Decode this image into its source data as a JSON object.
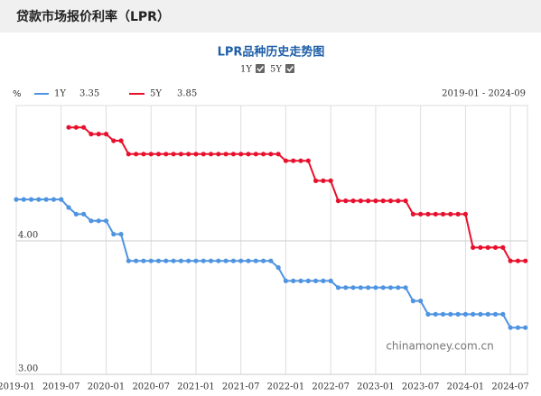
{
  "header": {
    "title": "贷款市场报价利率（LPR）"
  },
  "chart_data": {
    "type": "line",
    "title": "LPR品种历史走势图",
    "y_unit": "%",
    "range_label": "2019-01 - 2024-09",
    "watermark": "chinamoney.com.cn",
    "x": [
      "2019-01",
      "2019-02",
      "2019-03",
      "2019-04",
      "2019-05",
      "2019-06",
      "2019-07",
      "2019-08",
      "2019-09",
      "2019-10",
      "2019-11",
      "2019-12",
      "2020-01",
      "2020-02",
      "2020-03",
      "2020-04",
      "2020-05",
      "2020-06",
      "2020-07",
      "2020-08",
      "2020-09",
      "2020-10",
      "2020-11",
      "2020-12",
      "2021-01",
      "2021-02",
      "2021-03",
      "2021-04",
      "2021-05",
      "2021-06",
      "2021-07",
      "2021-08",
      "2021-09",
      "2021-10",
      "2021-11",
      "2021-12",
      "2022-01",
      "2022-02",
      "2022-03",
      "2022-04",
      "2022-05",
      "2022-06",
      "2022-07",
      "2022-08",
      "2022-09",
      "2022-10",
      "2022-11",
      "2022-12",
      "2023-01",
      "2023-02",
      "2023-03",
      "2023-04",
      "2023-05",
      "2023-06",
      "2023-07",
      "2023-08",
      "2023-09",
      "2023-10",
      "2023-11",
      "2023-12",
      "2024-01",
      "2024-02",
      "2024-03",
      "2024-04",
      "2024-05",
      "2024-06",
      "2024-07",
      "2024-08",
      "2024-09"
    ],
    "series": [
      {
        "name": "1Y",
        "color": "#4f94e0",
        "values": [
          4.31,
          4.31,
          4.31,
          4.31,
          4.31,
          4.31,
          4.31,
          4.25,
          4.2,
          4.2,
          4.15,
          4.15,
          4.15,
          4.05,
          4.05,
          3.85,
          3.85,
          3.85,
          3.85,
          3.85,
          3.85,
          3.85,
          3.85,
          3.85,
          3.85,
          3.85,
          3.85,
          3.85,
          3.85,
          3.85,
          3.85,
          3.85,
          3.85,
          3.85,
          3.85,
          3.8,
          3.7,
          3.7,
          3.7,
          3.7,
          3.7,
          3.7,
          3.7,
          3.65,
          3.65,
          3.65,
          3.65,
          3.65,
          3.65,
          3.65,
          3.65,
          3.65,
          3.65,
          3.55,
          3.55,
          3.45,
          3.45,
          3.45,
          3.45,
          3.45,
          3.45,
          3.45,
          3.45,
          3.45,
          3.45,
          3.45,
          3.35,
          3.35,
          3.35
        ]
      },
      {
        "name": "5Y",
        "color": "#e8112d",
        "values": [
          null,
          null,
          null,
          null,
          null,
          null,
          null,
          4.85,
          4.85,
          4.85,
          4.8,
          4.8,
          4.8,
          4.75,
          4.75,
          4.65,
          4.65,
          4.65,
          4.65,
          4.65,
          4.65,
          4.65,
          4.65,
          4.65,
          4.65,
          4.65,
          4.65,
          4.65,
          4.65,
          4.65,
          4.65,
          4.65,
          4.65,
          4.65,
          4.65,
          4.65,
          4.6,
          4.6,
          4.6,
          4.6,
          4.45,
          4.45,
          4.45,
          4.3,
          4.3,
          4.3,
          4.3,
          4.3,
          4.3,
          4.3,
          4.3,
          4.3,
          4.3,
          4.2,
          4.2,
          4.2,
          4.2,
          4.2,
          4.2,
          4.2,
          4.2,
          3.95,
          3.95,
          3.95,
          3.95,
          3.95,
          3.85,
          3.85,
          3.85
        ]
      }
    ],
    "ylim": [
      3,
      5
    ],
    "yticks": [
      {
        "value": 3,
        "label": "3.00"
      },
      {
        "value": 4,
        "label": "4.00"
      }
    ],
    "grid": true
  }
}
